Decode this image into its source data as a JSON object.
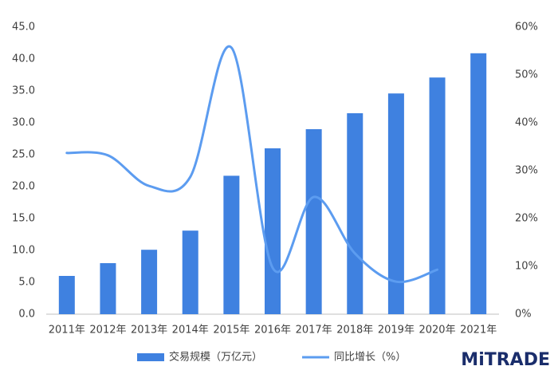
{
  "chart_data": {
    "type": "bar-line",
    "categories": [
      "2011年",
      "2012年",
      "2013年",
      "2014年",
      "2015年",
      "2016年",
      "2017年",
      "2018年",
      "2019年",
      "2020年",
      "2021年"
    ],
    "series": [
      {
        "name": "交易规模（万亿元）",
        "type": "bar",
        "color": "#3f81e0",
        "values": [
          6.0,
          8.0,
          10.1,
          13.1,
          21.7,
          26.0,
          29.0,
          31.5,
          34.6,
          37.1,
          40.9
        ]
      },
      {
        "name": "同比增长（%）",
        "type": "line",
        "axis": "y2",
        "color": "#5c9cf0",
        "values": [
          33.7,
          33.2,
          26.8,
          28.7,
          55.7,
          9.7,
          24.5,
          12.7,
          6.8,
          9.3,
          null
        ]
      }
    ],
    "ylim": [
      0,
      45
    ],
    "yticks": [
      {
        "value": 0,
        "label": "0.0"
      },
      {
        "value": 5,
        "label": "5.0"
      },
      {
        "value": 10,
        "label": "10.0"
      },
      {
        "value": 15,
        "label": "15.0"
      },
      {
        "value": 20,
        "label": "20.0"
      },
      {
        "value": 25,
        "label": "25.0"
      },
      {
        "value": 30,
        "label": "30.0"
      },
      {
        "value": 35,
        "label": "35.0"
      },
      {
        "value": 40,
        "label": "40.0"
      },
      {
        "value": 45,
        "label": "45.0"
      }
    ],
    "y2lim": [
      0,
      60
    ],
    "y2ticks": [
      {
        "value": 0,
        "label": "0%"
      },
      {
        "value": 10,
        "label": "10%"
      },
      {
        "value": 20,
        "label": "20%"
      },
      {
        "value": 30,
        "label": "30%"
      },
      {
        "value": 40,
        "label": "40%"
      },
      {
        "value": 50,
        "label": "50%"
      },
      {
        "value": 60,
        "label": "60%"
      }
    ],
    "legend": "bottom",
    "brand": "MiTRADE"
  }
}
